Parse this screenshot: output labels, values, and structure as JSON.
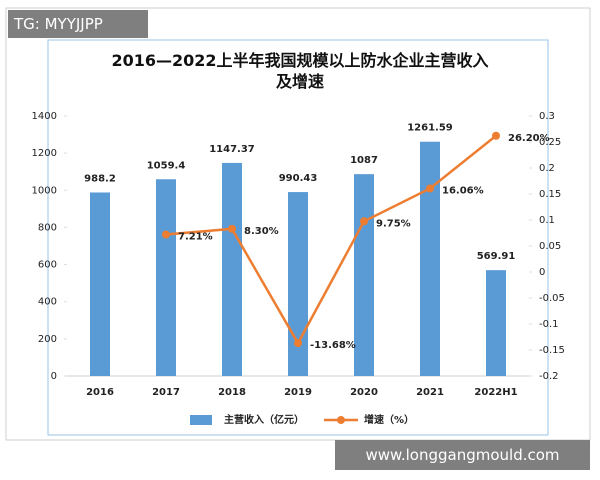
{
  "watermark_top": "TG: MYYJJPP",
  "watermark_bottom": "www.longgangmould.com",
  "chart_data": {
    "type": "bar",
    "title": "2016—2022上半年我国规模以上防水企业主营收入及增速",
    "categories": [
      "2016",
      "2017",
      "2018",
      "2019",
      "2020",
      "2021",
      "2022H1"
    ],
    "series": [
      {
        "name": "主营收入（亿元）",
        "color": "#5b9bd5",
        "type": "bar",
        "values": [
          988.2,
          1059.4,
          1147.37,
          990.43,
          1087,
          1261.59,
          569.91
        ]
      },
      {
        "name": "增速（%）",
        "color": "#ed7d31",
        "type": "line",
        "axis": "y2",
        "values": [
          null,
          0.0721,
          0.083,
          -0.1368,
          0.0975,
          0.1606,
          0.262
        ],
        "value_labels": [
          null,
          "7.21%",
          "8.30%",
          "-13.68%",
          "9.75%",
          "16.06%",
          "26.20%"
        ]
      }
    ],
    "ylim": [
      0,
      1400
    ],
    "yticks": [
      0,
      200,
      400,
      600,
      800,
      1000,
      1200,
      1400
    ],
    "y2lim": [
      -0.2,
      0.3
    ],
    "y2ticks": [
      -0.2,
      -0.15,
      -0.1,
      -0.05,
      0,
      0.05,
      0.1,
      0.15,
      0.2,
      0.25,
      0.3
    ],
    "legend": "bottom"
  }
}
